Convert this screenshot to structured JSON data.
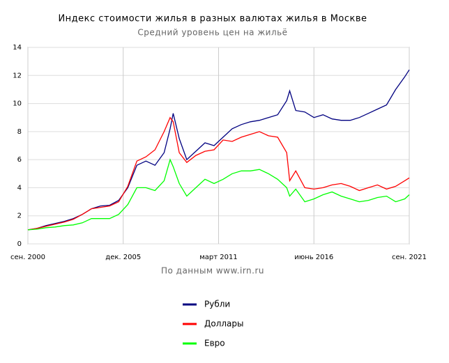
{
  "chart_data": {
    "type": "line",
    "title": "Индекс стоимости жилья в разных валютах жилья в Москве",
    "subtitle": "Средний уровень цен на жильё",
    "source": "По данным www.irn.ru",
    "x": [
      "2000-09",
      "2001-03",
      "2001-09",
      "2002-03",
      "2002-09",
      "2003-03",
      "2003-09",
      "2004-03",
      "2004-09",
      "2005-03",
      "2005-09",
      "2006-03",
      "2006-09",
      "2007-03",
      "2007-09",
      "2008-03",
      "2008-07",
      "2008-09",
      "2009-01",
      "2009-06",
      "2009-12",
      "2010-06",
      "2010-12",
      "2011-06",
      "2011-12",
      "2012-06",
      "2012-12",
      "2013-06",
      "2013-12",
      "2014-06",
      "2014-12",
      "2015-02",
      "2015-06",
      "2015-12",
      "2016-06",
      "2016-12",
      "2017-06",
      "2017-12",
      "2018-06",
      "2018-12",
      "2019-06",
      "2019-12",
      "2020-06",
      "2020-12",
      "2021-06",
      "2021-09"
    ],
    "series": [
      {
        "name": "Рубли",
        "color": "#000080",
        "values": [
          1.0,
          1.1,
          1.3,
          1.45,
          1.6,
          1.8,
          2.1,
          2.5,
          2.7,
          2.75,
          3.1,
          4.0,
          5.6,
          5.9,
          5.6,
          6.5,
          8.2,
          9.3,
          7.5,
          6.0,
          6.6,
          7.2,
          7.0,
          7.6,
          8.2,
          8.5,
          8.7,
          8.8,
          9.0,
          9.2,
          10.2,
          10.9,
          9.5,
          9.4,
          9.0,
          9.2,
          8.9,
          8.8,
          8.8,
          9.0,
          9.3,
          9.6,
          9.9,
          11.0,
          11.9,
          12.4
        ]
      },
      {
        "name": "Доллары",
        "color": "#ff0000",
        "values": [
          1.0,
          1.1,
          1.25,
          1.4,
          1.55,
          1.75,
          2.1,
          2.5,
          2.6,
          2.7,
          3.0,
          4.1,
          5.9,
          6.2,
          6.7,
          8.0,
          9.0,
          8.7,
          6.5,
          5.8,
          6.3,
          6.6,
          6.7,
          7.4,
          7.3,
          7.6,
          7.8,
          8.0,
          7.7,
          7.6,
          6.5,
          4.5,
          5.2,
          4.0,
          3.9,
          4.0,
          4.2,
          4.3,
          4.1,
          3.8,
          4.0,
          4.2,
          3.9,
          4.1,
          4.5,
          4.7
        ]
      },
      {
        "name": "Евро",
        "color": "#00ff00",
        "values": [
          1.0,
          1.05,
          1.15,
          1.2,
          1.3,
          1.35,
          1.5,
          1.8,
          1.8,
          1.8,
          2.1,
          2.8,
          4.0,
          4.0,
          3.8,
          4.5,
          6.0,
          5.5,
          4.3,
          3.4,
          4.0,
          4.6,
          4.3,
          4.6,
          5.0,
          5.2,
          5.2,
          5.3,
          5.0,
          4.6,
          4.0,
          3.4,
          3.9,
          3.0,
          3.2,
          3.5,
          3.7,
          3.4,
          3.2,
          3.0,
          3.1,
          3.3,
          3.4,
          3.0,
          3.2,
          3.5
        ]
      }
    ],
    "xlim": [
      "2000-09",
      "2021-09"
    ],
    "xticks": [
      {
        "value": "2000-09",
        "label": "сен. 2000"
      },
      {
        "value": "2005-12",
        "label": "дек. 2005"
      },
      {
        "value": "2011-03",
        "label": "март 2011"
      },
      {
        "value": "2016-06",
        "label": "июнь 2016"
      },
      {
        "value": "2021-09",
        "label": "сен. 2021"
      }
    ],
    "ylim": [
      0,
      14
    ],
    "yticks": [
      0,
      2,
      4,
      6,
      8,
      10,
      12,
      14
    ],
    "grid": true
  }
}
